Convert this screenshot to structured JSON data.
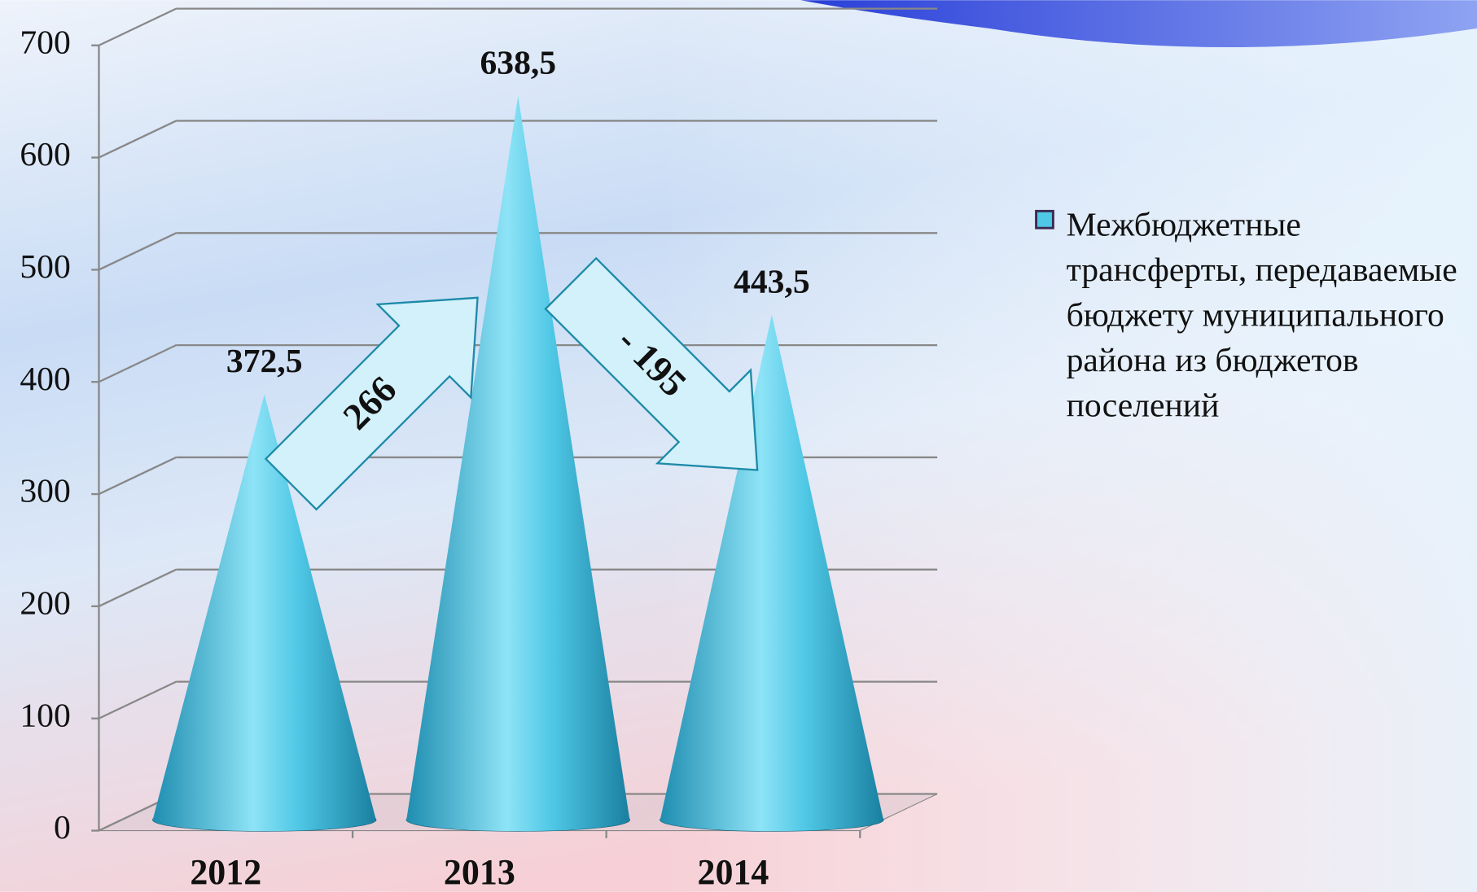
{
  "chart_data": {
    "type": "bar",
    "categories": [
      "2012",
      "2013",
      "2014"
    ],
    "series": [
      {
        "name": "Межбюджетные трансферты, передаваемые бюджету муниципального района из бюджетов поселений",
        "color": "#4fc8e6",
        "values": [
          372.5,
          638.5,
          443.5
        ],
        "value_labels": [
          "372,5",
          "638,5",
          "443,5"
        ]
      }
    ],
    "ylim": [
      0,
      700
    ],
    "yticks": [
      0,
      100,
      200,
      300,
      400,
      500,
      600,
      700
    ],
    "grid": true,
    "legend": "right",
    "annotations": [
      "266",
      "- 195"
    ]
  }
}
